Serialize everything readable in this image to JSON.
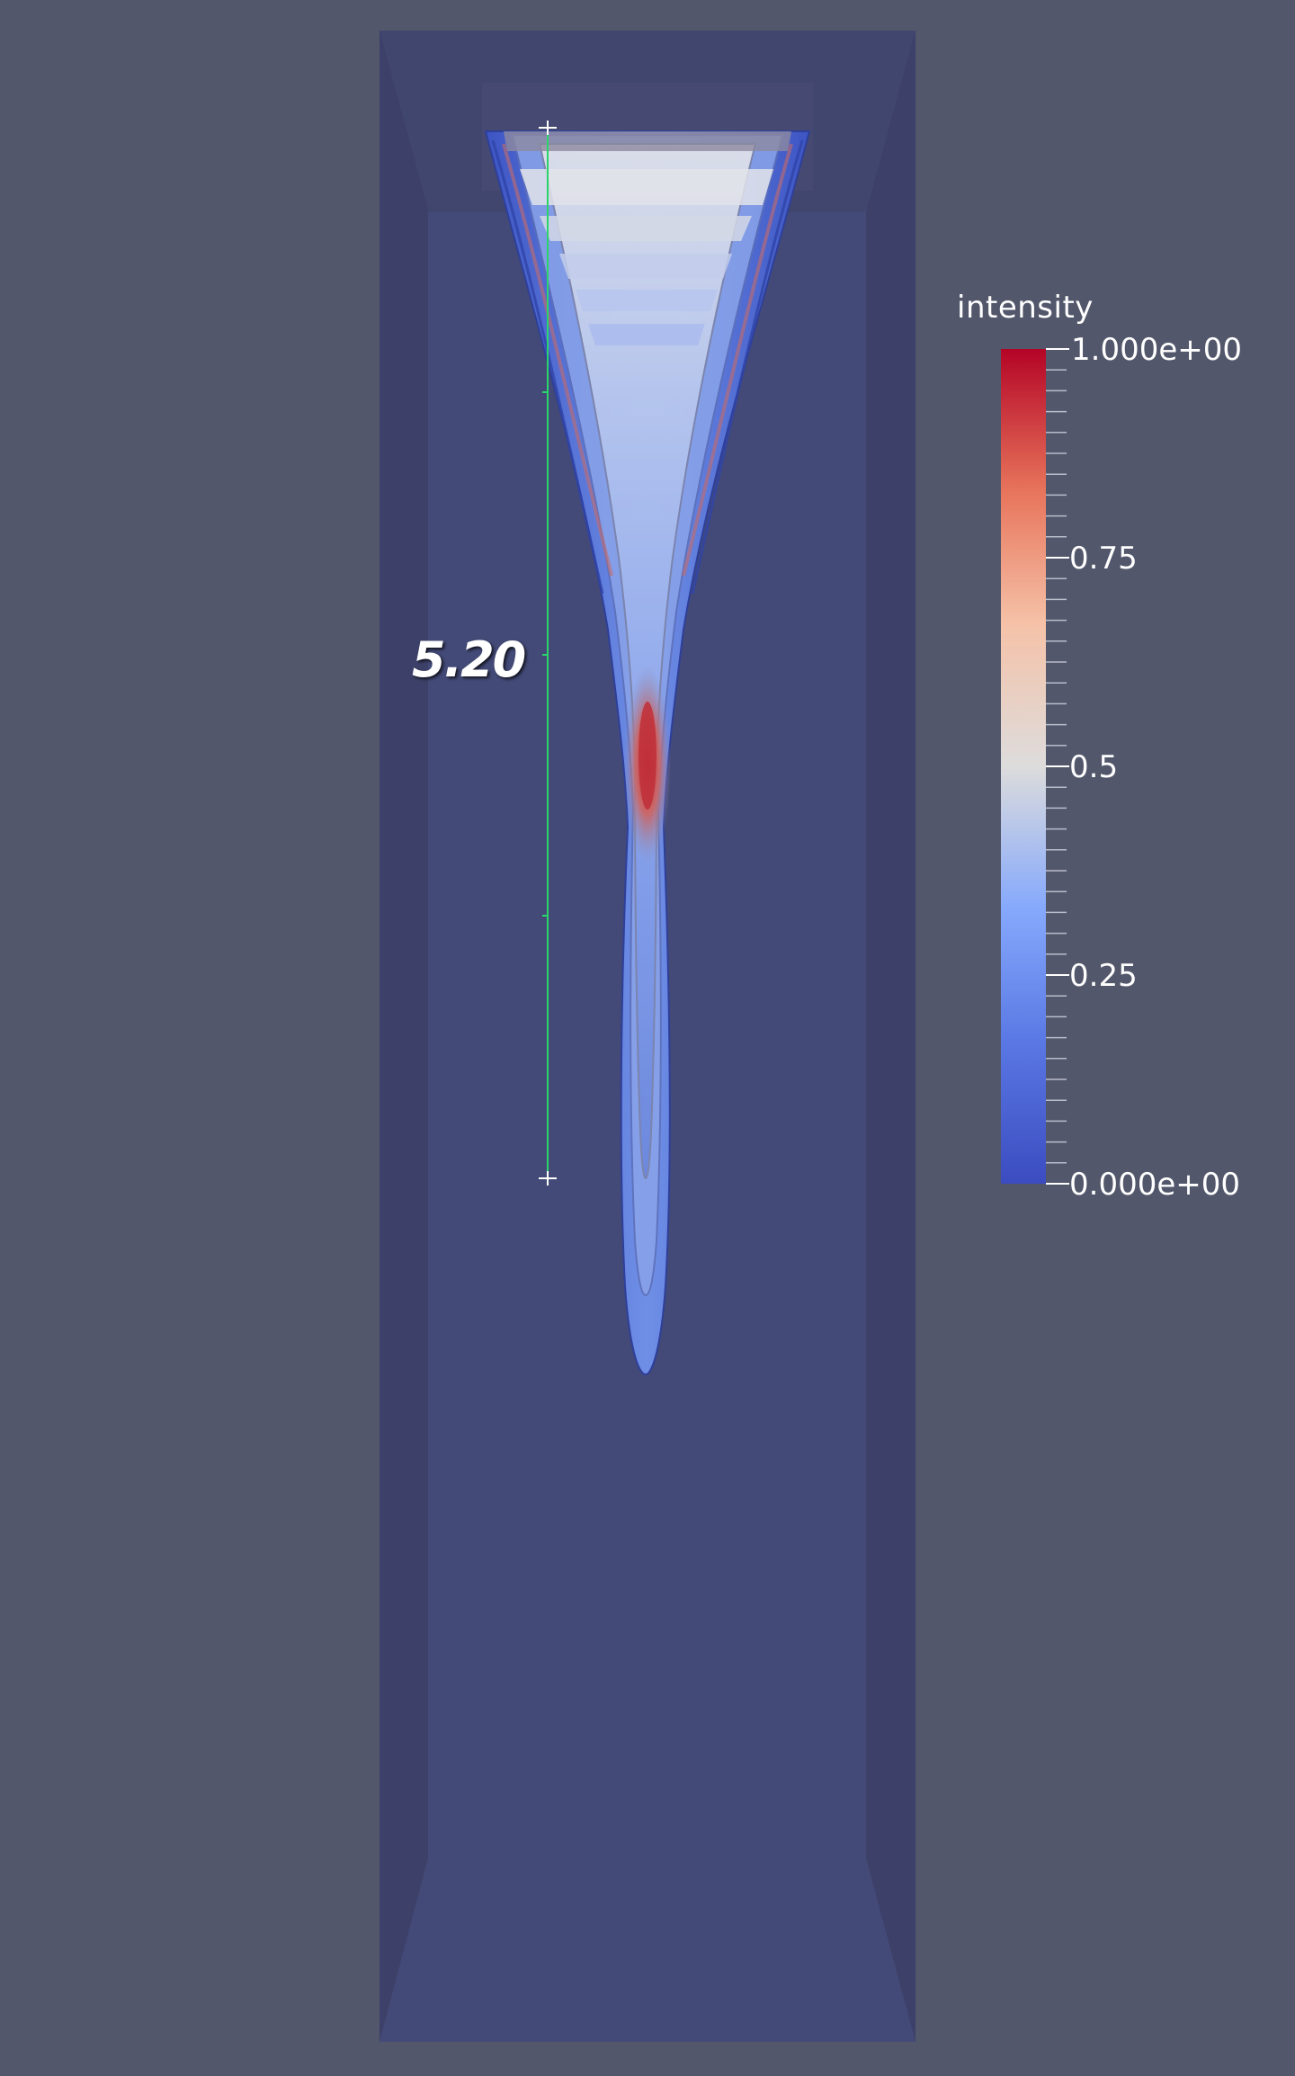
{
  "ruler": {
    "distance_label": "5.20"
  },
  "colorbar": {
    "title": "intensity",
    "tick_labels": [
      "1.000e+00",
      "0.75",
      "0.5",
      "0.25",
      "0.000e+00"
    ],
    "colormap": [
      "#b40426",
      "#e7745b",
      "#f7b89c",
      "#dddcdc",
      "#aac7fd",
      "#7396f5",
      "#3b4cc0"
    ]
  },
  "colors": {
    "background": "#52576b",
    "domain_box": "#3f4470",
    "ruler_line": "#2bd46a",
    "text": "#ffffff"
  },
  "icons": {
    "ruler": "measurement-ruler-icon"
  }
}
